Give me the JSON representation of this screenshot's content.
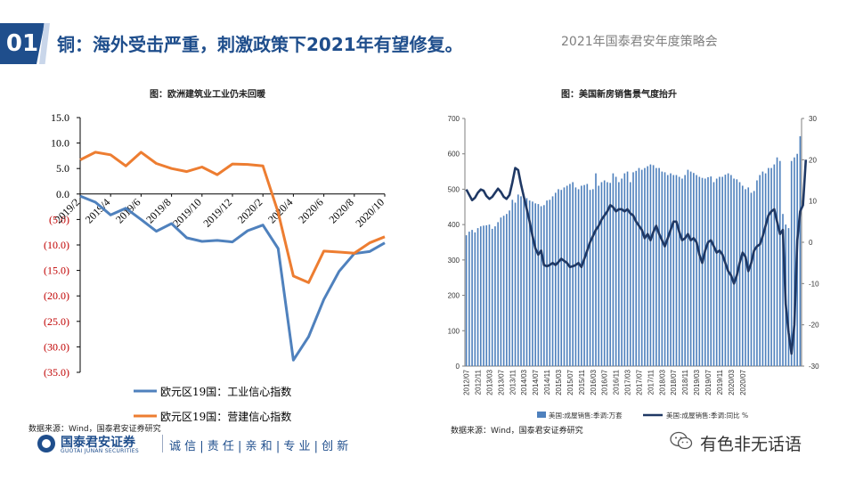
{
  "header": {
    "badge": "01",
    "title": "铜：海外受击严重，刺激政策下2021年有望修复。",
    "event": "2021年国泰君安年度策略会"
  },
  "colors": {
    "brand": "#1f4e8c",
    "series_blue": "#4f81bd",
    "series_orange": "#ed7d31",
    "negative_tick": "#c00000"
  },
  "left": {
    "title": "图：欧洲建筑业工业仍未回暖",
    "source": "数据来源：Wind，国泰君安证券研究"
  },
  "right": {
    "title": "图：美国新房销售景气度抬升",
    "source": "数据来源：Wind，国泰君安证券研究"
  },
  "footer": {
    "logo_cn": "国泰君安证券",
    "logo_en": "GUOTAI JUNAN SECURITIES",
    "motto": "诚 信 | 责 任 | 亲 和 | 专 业 | 创 新",
    "watermark": "有色非无话语",
    "watermark_icon": "wechat-icon"
  },
  "chart_data": [
    {
      "type": "line",
      "title": "图：欧洲建筑业工业仍未回暖",
      "ylim": [
        -35,
        15
      ],
      "y_ticks": [
        "15.0",
        "10.0",
        "5.0",
        "0.0",
        "(5.0)",
        "(10.0)",
        "(15.0)",
        "(20.0)",
        "(25.0)",
        "(30.0)",
        "(35.0)"
      ],
      "x_ticks": [
        "2019/2",
        "2019/4",
        "2019/6",
        "2019/8",
        "2019/10",
        "2019/12",
        "2020/2",
        "2020/4",
        "2020/6",
        "2020/8",
        "2020/10"
      ],
      "x": [
        "2019/2",
        "2019/3",
        "2019/4",
        "2019/5",
        "2019/6",
        "2019/7",
        "2019/8",
        "2019/9",
        "2019/10",
        "2019/11",
        "2019/12",
        "2020/1",
        "2020/2",
        "2020/3",
        "2020/4",
        "2020/5",
        "2020/6",
        "2020/7",
        "2020/8",
        "2020/9",
        "2020/10"
      ],
      "series": [
        {
          "name": "欧元区19国：工业信心指数",
          "color": "#4f81bd",
          "values": [
            -0.4,
            -1.6,
            -4.1,
            -2.8,
            -5.0,
            -7.3,
            -5.8,
            -8.6,
            -9.3,
            -9.1,
            -9.4,
            -7.2,
            -6.1,
            -10.7,
            -32.6,
            -28.0,
            -20.7,
            -15.2,
            -11.7,
            -11.3,
            -9.6
          ]
        },
        {
          "name": "欧元区19国：营建信心指数",
          "color": "#ed7d31",
          "values": [
            6.7,
            8.2,
            7.7,
            5.5,
            8.2,
            6.0,
            5.0,
            4.4,
            5.3,
            3.8,
            5.9,
            5.8,
            5.5,
            -3.6,
            -16.1,
            -17.4,
            -11.2,
            -11.4,
            -11.6,
            -9.6,
            -8.4
          ]
        }
      ],
      "legend": "bottom-left"
    },
    {
      "type": "bar+line",
      "title": "图：美国新房销售景气度抬升",
      "ylim_left": [
        0,
        700
      ],
      "ylim_right": [
        -30,
        30
      ],
      "y_ticks_left": [
        0,
        100,
        200,
        300,
        400,
        500,
        600,
        700
      ],
      "y_ticks_right": [
        -30,
        -20,
        -10,
        0,
        10,
        20,
        30
      ],
      "x_ticks": [
        "2012/07",
        "2012/11",
        "2013/03",
        "2013/07",
        "2013/11",
        "2014/03",
        "2014/07",
        "2014/11",
        "2015/03",
        "2015/07",
        "2015/11",
        "2016/03",
        "2016/07",
        "2016/11",
        "2017/03",
        "2017/07",
        "2017/11",
        "2018/03",
        "2018/07",
        "2018/11",
        "2019/03",
        "2019/07",
        "2019/11",
        "2020/03",
        "2020/07"
      ],
      "series": [
        {
          "name": "美国:成屋销售:季调:万套",
          "axis": "left",
          "type": "bar",
          "color": "#4f81bd",
          "values": [
            370,
            380,
            385,
            378,
            390,
            395,
            397,
            398,
            400,
            388,
            395,
            407,
            420,
            425,
            430,
            440,
            470,
            462,
            485,
            480,
            470,
            475,
            468,
            465,
            460,
            458,
            452,
            455,
            468,
            470,
            480,
            490,
            500,
            498,
            505,
            510,
            515,
            520,
            505,
            500,
            510,
            512,
            515,
            498,
            500,
            545,
            510,
            520,
            525,
            520,
            518,
            545,
            535,
            520,
            530,
            545,
            550,
            520,
            548,
            552,
            560,
            555,
            560,
            565,
            570,
            568,
            560,
            560,
            550,
            548,
            540,
            545,
            540,
            540,
            535,
            530,
            540,
            555,
            550,
            546,
            540,
            535,
            532,
            530,
            534,
            536,
            520,
            530,
            535,
            535,
            541,
            545,
            540,
            530,
            528,
            520,
            510,
            500,
            505,
            490,
            495,
            525,
            540,
            550,
            545,
            560,
            560,
            570,
            590,
            580,
            430,
            400,
            390,
            580,
            590,
            600,
            650
          ]
        },
        {
          "name": "美国:成屋销售:季调:同比 %",
          "axis": "right",
          "type": "line",
          "color": "#1f3864",
          "values": [
            12.8,
            11.5,
            10.2,
            10.8,
            12.0,
            12.8,
            12.5,
            11.2,
            10.5,
            11.0,
            12.0,
            13.0,
            12.2,
            11.0,
            10.5,
            11.5,
            14.5,
            18.0,
            17.5,
            14.0,
            11.0,
            8.0,
            5.0,
            1.5,
            -1.5,
            -3.0,
            -2.0,
            -5.5,
            -5.8,
            -5.5,
            -5.0,
            -5.5,
            -4.8,
            -4.0,
            -4.5,
            -5.0,
            -6.0,
            -5.8,
            -5.5,
            -5.0,
            -6.0,
            -4.0,
            -2.0,
            0.0,
            1.5,
            3.0,
            4.0,
            5.5,
            6.5,
            7.5,
            9.0,
            8.5,
            7.5,
            8.0,
            8.0,
            7.5,
            8.0,
            7.0,
            6.5,
            5.0,
            4.0,
            3.0,
            1.0,
            2.0,
            0.5,
            2.5,
            4.0,
            2.0,
            0.5,
            -1.0,
            1.0,
            3.0,
            5.0,
            5.0,
            2.5,
            0.5,
            1.0,
            2.0,
            0.5,
            1.0,
            0.0,
            -3.0,
            -5.0,
            -2.0,
            0.0,
            0.5,
            -1.0,
            -2.5,
            -2.0,
            -3.0,
            -5.0,
            -7.0,
            -8.0,
            -10.0,
            -8.0,
            -5.0,
            -2.5,
            -3.5,
            -7.0,
            -5.0,
            -2.0,
            -1.0,
            -0.5,
            1.5,
            4.0,
            6.5,
            7.5,
            8.0,
            5.0,
            2.0,
            3.0,
            -15.0,
            -22.0,
            -27.0,
            -20.0,
            0.5,
            7.5,
            9.0,
            20.0
          ]
        }
      ],
      "legend": "bottom-center"
    }
  ]
}
